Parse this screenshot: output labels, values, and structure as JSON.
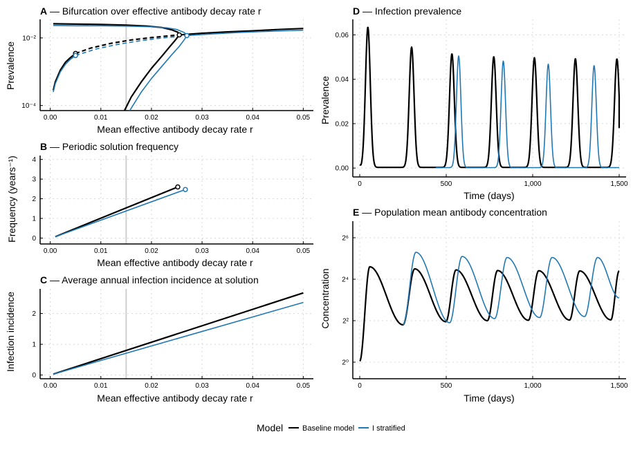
{
  "colors": {
    "baseline": "#000000",
    "stratified": "#1f78b4",
    "refline": "#cfcfcf"
  },
  "legend": {
    "title": "Model",
    "items": [
      {
        "label": "Baseline model",
        "color": "#000000"
      },
      {
        "label": "I stratified",
        "color": "#1f78b4"
      }
    ]
  },
  "chart_data": [
    {
      "id": "A",
      "type": "line",
      "panel_letter": "A",
      "title": "Bifurcation over effective antibody decay rate r",
      "xlabel": "Mean effective antibody decay rate r",
      "ylabel": "Prevalence",
      "yscale": "log10",
      "xlim": [
        -0.002,
        0.052
      ],
      "ylim": [
        -4.15,
        -1.45
      ],
      "xticks": [
        0,
        0.01,
        0.02,
        0.03,
        0.04,
        0.05
      ],
      "xtick_labels": [
        "0.00",
        "0.01",
        "0.02",
        "0.03",
        "0.04",
        "0.05"
      ],
      "yticks": [
        -4,
        -2
      ],
      "ytick_labels": [
        "10⁻⁴",
        "10⁻²"
      ],
      "reference_x": 0.015,
      "series": [
        {
          "name": "Baseline model",
          "color": "#000000",
          "style": "solid",
          "x": [
            0.0006,
            0.001,
            0.002,
            0.003,
            0.004,
            0.005
          ],
          "y": [
            -3.55,
            -3.3,
            -2.95,
            -2.72,
            -2.58,
            -2.46
          ]
        },
        {
          "name": "Baseline model",
          "color": "#000000",
          "style": "dashed",
          "x": [
            0.005,
            0.008,
            0.012,
            0.016,
            0.02,
            0.024,
            0.0255
          ],
          "y": [
            -2.46,
            -2.3,
            -2.16,
            -2.06,
            -1.99,
            -1.93,
            -1.91
          ]
        },
        {
          "name": "Baseline model",
          "color": "#000000",
          "style": "solid",
          "x": [
            0.0006,
            0.005,
            0.01,
            0.015,
            0.019,
            0.022,
            0.024,
            0.0252,
            0.0255
          ],
          "y": [
            -1.58,
            -1.59,
            -1.6,
            -1.62,
            -1.65,
            -1.69,
            -1.76,
            -1.83,
            -1.91
          ]
        },
        {
          "name": "Baseline model",
          "color": "#000000",
          "style": "solid",
          "x": [
            0.0145,
            0.016,
            0.018,
            0.02,
            0.022,
            0.0235,
            0.0248,
            0.0255
          ],
          "y": [
            -4.2,
            -3.75,
            -3.3,
            -2.9,
            -2.55,
            -2.28,
            -2.05,
            -1.91
          ]
        },
        {
          "name": "Baseline model",
          "color": "#000000",
          "style": "solid",
          "x": [
            0.0255,
            0.03,
            0.035,
            0.04,
            0.045,
            0.05
          ],
          "y": [
            -1.91,
            -1.86,
            -1.82,
            -1.79,
            -1.75,
            -1.72
          ]
        },
        {
          "name": "I stratified",
          "color": "#1f78b4",
          "style": "solid",
          "x": [
            0.0006,
            0.001,
            0.002,
            0.003,
            0.004,
            0.005
          ],
          "y": [
            -3.6,
            -3.35,
            -3.0,
            -2.78,
            -2.63,
            -2.52
          ]
        },
        {
          "name": "I stratified",
          "color": "#1f78b4",
          "style": "dashed",
          "x": [
            0.005,
            0.009,
            0.013,
            0.017,
            0.021,
            0.025,
            0.027
          ],
          "y": [
            -2.52,
            -2.33,
            -2.2,
            -2.1,
            -2.02,
            -1.96,
            -1.93
          ]
        },
        {
          "name": "I stratified",
          "color": "#1f78b4",
          "style": "solid",
          "x": [
            0.0006,
            0.005,
            0.01,
            0.015,
            0.02,
            0.023,
            0.025,
            0.0265,
            0.027
          ],
          "y": [
            -1.63,
            -1.64,
            -1.64,
            -1.65,
            -1.67,
            -1.7,
            -1.75,
            -1.84,
            -1.93
          ]
        },
        {
          "name": "I stratified",
          "color": "#1f78b4",
          "style": "solid",
          "x": [
            0.0155,
            0.018,
            0.02,
            0.022,
            0.024,
            0.0255,
            0.0265,
            0.027
          ],
          "y": [
            -4.2,
            -3.6,
            -3.2,
            -2.85,
            -2.5,
            -2.25,
            -2.05,
            -1.93
          ]
        },
        {
          "name": "I stratified",
          "color": "#1f78b4",
          "style": "solid",
          "x": [
            0.027,
            0.032,
            0.037,
            0.042,
            0.046,
            0.05
          ],
          "y": [
            -1.93,
            -1.88,
            -1.84,
            -1.81,
            -1.79,
            -1.77
          ]
        }
      ],
      "markers": [
        {
          "x": 0.005,
          "y": -2.46,
          "color": "#000000"
        },
        {
          "x": 0.005,
          "y": -2.52,
          "color": "#1f78b4"
        },
        {
          "x": 0.0255,
          "y": -1.91,
          "color": "#000000"
        },
        {
          "x": 0.027,
          "y": -1.93,
          "color": "#1f78b4"
        }
      ]
    },
    {
      "id": "B",
      "type": "line",
      "panel_letter": "B",
      "title": "Periodic solution frequency",
      "xlabel": "Mean effective antibody decay rate r",
      "ylabel": "Frequency (years⁻¹)",
      "xlim": [
        -0.002,
        0.052
      ],
      "ylim": [
        -0.3,
        4.2
      ],
      "xticks": [
        0,
        0.01,
        0.02,
        0.03,
        0.04,
        0.05
      ],
      "xtick_labels": [
        "0.00",
        "0.01",
        "0.02",
        "0.03",
        "0.04",
        "0.05"
      ],
      "yticks": [
        0,
        1,
        2,
        3,
        4
      ],
      "ytick_labels": [
        "0",
        "1",
        "2",
        "3",
        "4"
      ],
      "reference_x": 0.015,
      "series": [
        {
          "name": "Baseline model",
          "color": "#000000",
          "style": "solid",
          "x": [
            0.001,
            0.0252
          ],
          "y": [
            0.07,
            2.6
          ]
        },
        {
          "name": "I stratified",
          "color": "#1f78b4",
          "style": "solid",
          "x": [
            0.001,
            0.0267
          ],
          "y": [
            0.07,
            2.47
          ]
        }
      ],
      "markers": [
        {
          "x": 0.0252,
          "y": 2.6,
          "color": "#000000"
        },
        {
          "x": 0.0267,
          "y": 2.47,
          "color": "#1f78b4"
        }
      ]
    },
    {
      "id": "C",
      "type": "line",
      "panel_letter": "C",
      "title": "Average annual infection incidence at solution",
      "xlabel": "Mean effective antibody decay rate r",
      "ylabel": "Infection incidence",
      "xlim": [
        -0.002,
        0.052
      ],
      "ylim": [
        -0.12,
        2.8
      ],
      "xticks": [
        0,
        0.01,
        0.02,
        0.03,
        0.04,
        0.05
      ],
      "xtick_labels": [
        "0.00",
        "0.01",
        "0.02",
        "0.03",
        "0.04",
        "0.05"
      ],
      "yticks": [
        0,
        1,
        2
      ],
      "ytick_labels": [
        "0",
        "1",
        "2"
      ],
      "reference_x": 0.015,
      "series": [
        {
          "name": "Baseline model",
          "color": "#000000",
          "style": "solid",
          "x": [
            0.0006,
            0.05
          ],
          "y": [
            0.03,
            2.67
          ]
        },
        {
          "name": "I stratified",
          "color": "#1f78b4",
          "style": "solid",
          "x": [
            0.0006,
            0.05
          ],
          "y": [
            0.03,
            2.36
          ]
        }
      ]
    },
    {
      "id": "D",
      "type": "line",
      "generator": "pulses",
      "panel_letter": "D",
      "title": "Infection prevalence",
      "xlabel": "Time (days)",
      "ylabel": "Prevalence",
      "xlim": [
        -40,
        1540
      ],
      "ylim": [
        -0.004,
        0.067
      ],
      "xticks": [
        0,
        500,
        1000,
        1500
      ],
      "xtick_labels": [
        "0",
        "500",
        "1,000",
        "1,500"
      ],
      "yticks": [
        0,
        0.02,
        0.04,
        0.06
      ],
      "ytick_labels": [
        "0.00",
        "0.02",
        "0.04",
        "0.06"
      ],
      "series": [
        {
          "name": "Baseline model",
          "color": "#000000",
          "x_end": 1500,
          "base": 0.0003,
          "initial": 0.0015,
          "width": 14,
          "end_value": 0.018,
          "peaks_t": [
            47,
            300,
            533,
            775,
            1010,
            1247,
            1487
          ],
          "peaks_v": [
            0.0635,
            0.0545,
            0.0515,
            0.0502,
            0.0497,
            0.0493,
            0.0492
          ]
        },
        {
          "name": "I stratified",
          "color": "#1f78b4",
          "x_start": 440,
          "x_end": 1500,
          "base": 0.0002,
          "width": 13,
          "peaks_t": [
            572,
            830,
            1090,
            1355
          ],
          "peaks_v": [
            0.0505,
            0.0482,
            0.0468,
            0.0462
          ]
        }
      ]
    },
    {
      "id": "E",
      "type": "line",
      "generator": "sawtooth",
      "panel_letter": "E",
      "title": "Population mean antibody concentration",
      "xlabel": "Time (days)",
      "ylabel": "Concentration",
      "yscale": "log2",
      "xlim": [
        -40,
        1540
      ],
      "ylim": [
        -0.8,
        6.8
      ],
      "xticks": [
        0,
        500,
        1000,
        1500
      ],
      "xtick_labels": [
        "0",
        "500",
        "1,000",
        "1,500"
      ],
      "yticks": [
        0,
        2,
        4,
        6
      ],
      "ytick_labels": [
        "2⁰",
        "2²",
        "2⁴",
        "2⁶"
      ],
      "series": [
        {
          "name": "Baseline model",
          "color": "#000000",
          "x_start": 0,
          "x_end": 1500,
          "start_value": 0.05,
          "peaks": [
            [
              58,
              4.6
            ],
            [
              318,
              4.5
            ],
            [
              557,
              4.45
            ],
            [
              797,
              4.42
            ],
            [
              1035,
              4.41
            ],
            [
              1272,
              4.4
            ],
            [
              1500,
              4.4
            ]
          ],
          "troughs": [
            [
              250,
              1.8
            ],
            [
              498,
              1.95
            ],
            [
              738,
              2.0
            ],
            [
              975,
              2.02
            ],
            [
              1213,
              2.03
            ],
            [
              1452,
              2.04
            ]
          ]
        },
        {
          "name": "I stratified",
          "color": "#1f78b4",
          "x_start": 250,
          "x_end": 1500,
          "start_value": 1.8,
          "peaks": [
            [
              325,
              5.3
            ],
            [
              592,
              5.1
            ],
            [
              852,
              5.05
            ],
            [
              1112,
              5.05
            ],
            [
              1375,
              5.05
            ]
          ],
          "troughs": [
            [
              520,
              1.9
            ],
            [
              780,
              2.1
            ],
            [
              1040,
              2.15
            ],
            [
              1300,
              2.2
            ],
            [
              1500,
              3.1
            ]
          ]
        }
      ]
    }
  ]
}
